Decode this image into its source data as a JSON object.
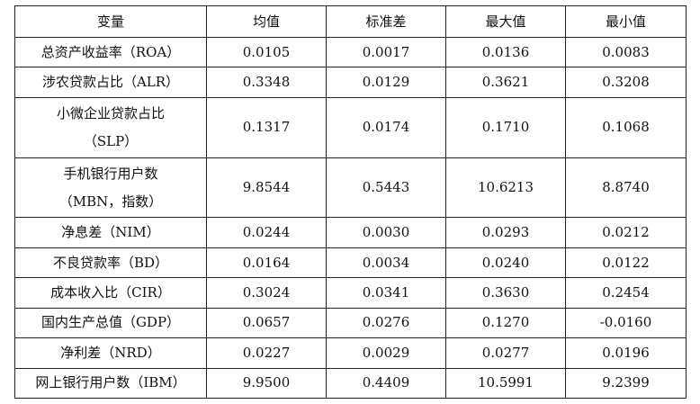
{
  "headers": [
    "变量",
    "均值",
    "标准差",
    "最大值",
    "最小值"
  ],
  "rows": [
    {
      "label": [
        "总资产收益率（ROA）"
      ],
      "mean": "0.0105",
      "std": "0.0017",
      "max": "0.0136",
      "min": "0.0083"
    },
    {
      "label": [
        "涉农贷款占比（ALR）"
      ],
      "mean": "0.3348",
      "std": "0.0129",
      "max": "0.3621",
      "min": "0.3208"
    },
    {
      "label": [
        "小微企业贷款占比",
        "（SLP）"
      ],
      "mean": "0.1317",
      "std": "0.0174",
      "max": "0.1710",
      "min": "0.1068"
    },
    {
      "label": [
        "手机银行用户数",
        "（MBN，指数）"
      ],
      "mean": "9.8544",
      "std": "0.5443",
      "max": "10.6213",
      "min": "8.8740"
    },
    {
      "label": [
        "净息差（NIM）"
      ],
      "mean": "0.0244",
      "std": "0.0030",
      "max": "0.0293",
      "min": "0.0212"
    },
    {
      "label": [
        "不良贷款率（BD）"
      ],
      "mean": "0.0164",
      "std": "0.0034",
      "max": "0.0240",
      "min": "0.0122"
    },
    {
      "label": [
        "成本收入比（CIR）"
      ],
      "mean": "0.3024",
      "std": "0.0341",
      "max": "0.3630",
      "min": "0.2454"
    },
    {
      "label": [
        "国内生产总值（GDP）"
      ],
      "mean": "0.0657",
      "std": "0.0276",
      "max": "0.1270",
      "min": "-0.0160"
    },
    {
      "label": [
        "净利差（NRD）"
      ],
      "mean": "0.0227",
      "std": "0.0029",
      "max": "0.0277",
      "min": "0.0196"
    },
    {
      "label": [
        "网上银行用户数（IBM）"
      ],
      "mean": "9.9500",
      "std": "0.4409",
      "max": "10.5991",
      "min": "9.2399"
    }
  ]
}
